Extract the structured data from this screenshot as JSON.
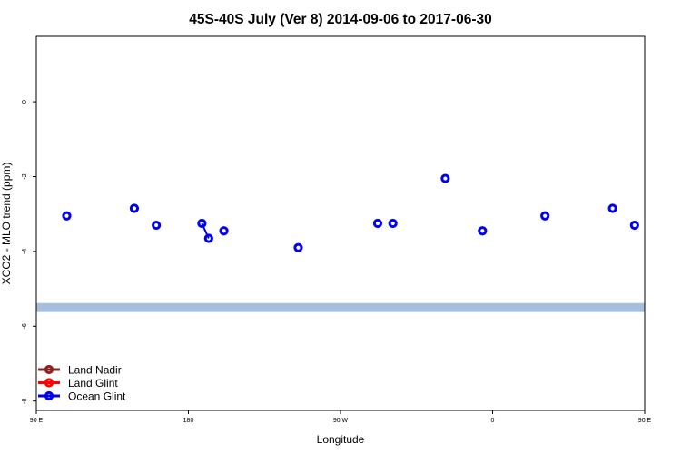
{
  "chart_data": {
    "type": "scatter",
    "title": "45S-40S July (Ver 8)   2014-09-06 to 2017-06-30",
    "xlabel": "Longitude",
    "ylabel": "XCO2 - MLO trend (ppm)",
    "xlim": [
      90,
      450
    ],
    "ylim": [
      -8.25,
      1.75
    ],
    "x_ticks": [
      {
        "value": 90,
        "label": "90 E"
      },
      {
        "value": 180,
        "label": "180"
      },
      {
        "value": 270,
        "label": "90 W"
      },
      {
        "value": 360,
        "label": "0"
      },
      {
        "value": 450,
        "label": "90 E"
      },
      {
        "value": 540,
        "label": "180"
      }
    ],
    "y_ticks": [
      {
        "value": 0,
        "label": "0"
      },
      {
        "value": -2,
        "label": "-2"
      },
      {
        "value": -4,
        "label": "-4"
      },
      {
        "value": -6,
        "label": "-6"
      },
      {
        "value": -8,
        "label": "-8"
      }
    ],
    "map_strip": {
      "y_range": [
        -5.62,
        -5.38
      ],
      "ocean_color": "#a7bfdf",
      "land_color": "#ffd966",
      "land_segments": []
    },
    "series": [
      {
        "name": "Land Nadir",
        "color": "#8b2323",
        "points": []
      },
      {
        "name": "Land Glint",
        "color": "#ff0000",
        "points": []
      },
      {
        "name": "Ocean Glint",
        "color": "#0000ee",
        "points": [
          {
            "x": 108,
            "y": -3.05
          },
          {
            "x": 148,
            "y": -2.85
          },
          {
            "x": 161,
            "y": -3.3
          },
          {
            "x": 188,
            "y": -3.25
          },
          {
            "x": 192,
            "y": -3.65
          },
          {
            "x": 201,
            "y": -3.45
          },
          {
            "x": 245,
            "y": -3.9
          },
          {
            "x": 292,
            "y": -3.25
          },
          {
            "x": 301,
            "y": -3.25
          },
          {
            "x": 332,
            "y": -2.05
          },
          {
            "x": 354,
            "y": -3.45
          },
          {
            "x": 391,
            "y": -3.05
          },
          {
            "x": 431,
            "y": -2.85
          },
          {
            "x": 444,
            "y": -3.3
          }
        ],
        "lines": [
          [
            3,
            4
          ]
        ]
      }
    ],
    "legend": "bottom-left"
  }
}
